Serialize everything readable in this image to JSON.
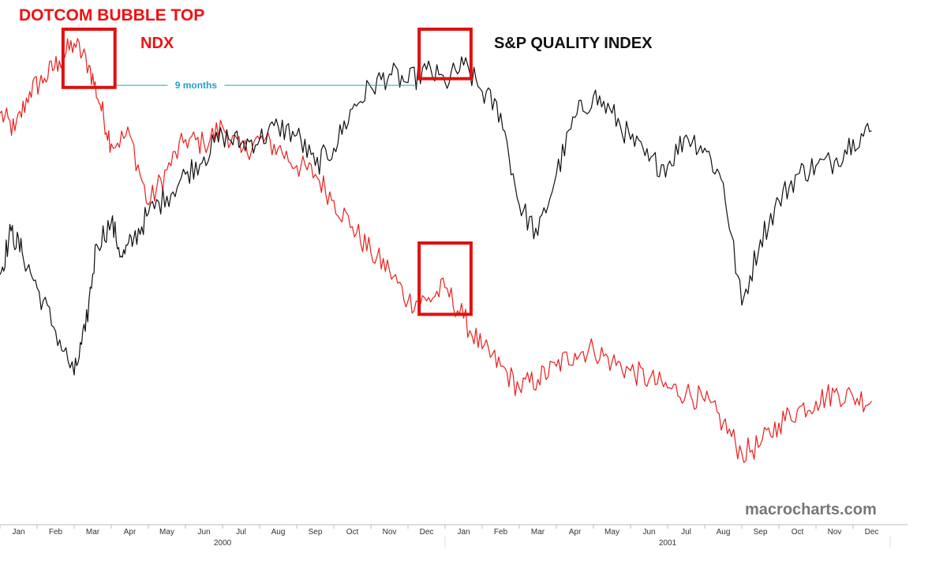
{
  "annotations": {
    "headline": "DOTCOM BUBBLE TOP",
    "ndx_label": "NDX",
    "quality_label": "S&P QUALITY INDEX",
    "lag_label": "9 months",
    "watermark": "macrocharts.com"
  },
  "colors": {
    "ndx": "#e8201e",
    "quality": "#111111",
    "highlight": "#e01010",
    "lag_line": "#2a9fc4"
  },
  "chart_data": {
    "type": "line",
    "title": "DOTCOM BUBBLE TOP",
    "xlabel": "",
    "ylabel": "",
    "x_ticks": [
      "Jan",
      "Feb",
      "Mar",
      "Apr",
      "May",
      "Jun",
      "Jul",
      "Aug",
      "Sep",
      "Oct",
      "Nov",
      "Dec",
      "Jan",
      "Feb",
      "Mar",
      "Apr",
      "May",
      "Jun",
      "Jul",
      "Aug",
      "Sep",
      "Oct",
      "Nov",
      "Dec"
    ],
    "years": [
      "2000",
      "2001"
    ],
    "x_range_months": [
      0,
      24
    ],
    "y_range": [
      0,
      100
    ],
    "y_axis_shown": false,
    "series": [
      {
        "name": "NDX",
        "points": [
          [
            0,
            84
          ],
          [
            0.4,
            80
          ],
          [
            0.8,
            89
          ],
          [
            1.2,
            92
          ],
          [
            1.6,
            96
          ],
          [
            2.0,
            100
          ],
          [
            2.4,
            95
          ],
          [
            2.7,
            86
          ],
          [
            3.0,
            77
          ],
          [
            3.5,
            79
          ],
          [
            4.0,
            63
          ],
          [
            4.5,
            71
          ],
          [
            5.0,
            78
          ],
          [
            5.5,
            77
          ],
          [
            6.0,
            81
          ],
          [
            6.5,
            75
          ],
          [
            7.0,
            78
          ],
          [
            7.5,
            76
          ],
          [
            8.0,
            72
          ],
          [
            8.5,
            70
          ],
          [
            9.0,
            64
          ],
          [
            9.5,
            58
          ],
          [
            10.0,
            52
          ],
          [
            10.5,
            48
          ],
          [
            11.0,
            41
          ],
          [
            11.5,
            41
          ],
          [
            12.0,
            44
          ],
          [
            12.5,
            37
          ],
          [
            13.0,
            30
          ],
          [
            13.5,
            26
          ],
          [
            14.0,
            21
          ],
          [
            14.5,
            23
          ],
          [
            15.0,
            26
          ],
          [
            15.5,
            29
          ],
          [
            16.0,
            30
          ],
          [
            16.5,
            27
          ],
          [
            17.0,
            25
          ],
          [
            17.5,
            23
          ],
          [
            18.0,
            21
          ],
          [
            18.5,
            20
          ],
          [
            19.0,
            18
          ],
          [
            19.5,
            13
          ],
          [
            20.0,
            6
          ],
          [
            20.5,
            8
          ],
          [
            21.0,
            13
          ],
          [
            21.5,
            16
          ],
          [
            22.0,
            18
          ],
          [
            22.5,
            20
          ],
          [
            23.0,
            19
          ],
          [
            23.5,
            18
          ]
        ]
      },
      {
        "name": "S&P QUALITY INDEX",
        "points": [
          [
            0,
            47
          ],
          [
            0.3,
            57
          ],
          [
            0.6,
            52
          ],
          [
            1.0,
            44
          ],
          [
            1.5,
            34
          ],
          [
            2.0,
            24
          ],
          [
            2.3,
            34
          ],
          [
            2.6,
            54
          ],
          [
            3.0,
            59
          ],
          [
            3.3,
            51
          ],
          [
            3.6,
            55
          ],
          [
            4.0,
            61
          ],
          [
            4.5,
            65
          ],
          [
            5.0,
            70
          ],
          [
            5.5,
            74
          ],
          [
            6.0,
            79
          ],
          [
            6.5,
            77
          ],
          [
            7.0,
            78
          ],
          [
            7.5,
            81
          ],
          [
            8.0,
            79
          ],
          [
            8.5,
            72
          ],
          [
            9.0,
            76
          ],
          [
            9.5,
            85
          ],
          [
            10.0,
            90
          ],
          [
            10.5,
            93
          ],
          [
            11.0,
            91
          ],
          [
            11.5,
            94
          ],
          [
            12.0,
            91
          ],
          [
            12.5,
            95
          ],
          [
            13.0,
            89
          ],
          [
            13.5,
            84
          ],
          [
            14.0,
            63
          ],
          [
            14.5,
            56
          ],
          [
            15.0,
            70
          ],
          [
            15.5,
            83
          ],
          [
            16.0,
            88
          ],
          [
            16.5,
            84
          ],
          [
            17.0,
            78
          ],
          [
            17.5,
            73
          ],
          [
            18.0,
            72
          ],
          [
            18.5,
            79
          ],
          [
            19.0,
            76
          ],
          [
            19.5,
            68
          ],
          [
            20.0,
            40
          ],
          [
            20.5,
            55
          ],
          [
            21.0,
            64
          ],
          [
            21.5,
            70
          ],
          [
            22.0,
            72
          ],
          [
            22.5,
            73
          ],
          [
            23.0,
            78
          ],
          [
            23.5,
            80
          ]
        ]
      }
    ],
    "highlights": [
      {
        "label": "NDX top",
        "x_range": [
          1.7,
          3.1
        ],
        "y_range": [
          91,
          100
        ]
      },
      {
        "label": "Quality top",
        "x_range": [
          11.3,
          12.7
        ],
        "y_range": [
          93,
          100
        ]
      },
      {
        "label": "NDX at Quality top",
        "x_range": [
          11.3,
          12.7
        ],
        "y_range": [
          39,
          51
        ]
      }
    ],
    "lag_annotation": {
      "label": "9 months",
      "x_from": 3.1,
      "x_to": 11.3,
      "y": 96
    }
  }
}
